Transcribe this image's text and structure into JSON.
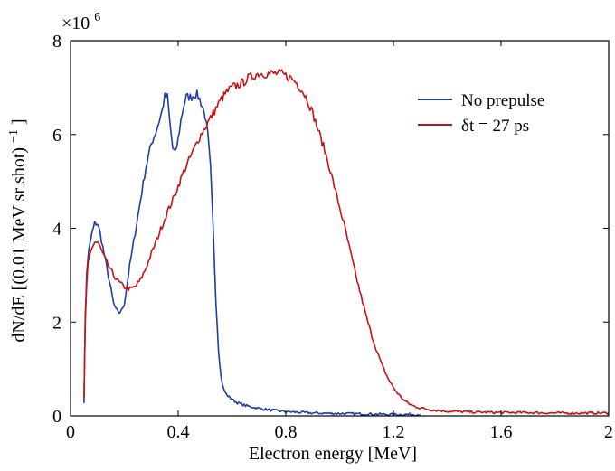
{
  "chart_data": {
    "type": "line",
    "title": "",
    "xlabel": "Electron energy [MeV]",
    "ylabel": "dN/dE [(0.01 MeV sr shot)",
    "ylabel_sup": "−1",
    "ylabel_close": "]",
    "y_exponent_label": "×10",
    "y_exponent_power": "6",
    "xlim": [
      0,
      2
    ],
    "ylim": [
      0,
      8
    ],
    "xticks": [
      0,
      0.4,
      0.8,
      1.2,
      1.6,
      2
    ],
    "xtick_labels": [
      "0",
      "0.4",
      "0.8",
      "1.2",
      "1.6",
      "2"
    ],
    "yticks": [
      0,
      2,
      4,
      6,
      8
    ],
    "ytick_labels": [
      "0",
      "2",
      "4",
      "6",
      "8"
    ],
    "grid": false,
    "legend_position": "top-right",
    "series": [
      {
        "name": "No prepulse",
        "color": "#1f3fa6",
        "x": [
          0.05,
          0.055,
          0.06,
          0.065,
          0.07,
          0.08,
          0.09,
          0.1,
          0.11,
          0.12,
          0.13,
          0.14,
          0.15,
          0.16,
          0.17,
          0.18,
          0.19,
          0.2,
          0.21,
          0.22,
          0.24,
          0.26,
          0.28,
          0.3,
          0.32,
          0.34,
          0.35,
          0.36,
          0.37,
          0.38,
          0.39,
          0.4,
          0.41,
          0.42,
          0.43,
          0.44,
          0.45,
          0.46,
          0.47,
          0.48,
          0.49,
          0.5,
          0.51,
          0.52,
          0.53,
          0.54,
          0.55,
          0.56,
          0.57,
          0.58,
          0.6,
          0.62,
          0.65,
          0.7,
          0.75,
          0.8,
          0.9,
          1.0,
          1.1,
          1.2,
          1.3
        ],
        "y": [
          0.3,
          2.2,
          3.0,
          3.4,
          3.6,
          3.9,
          4.1,
          4.1,
          3.9,
          3.6,
          3.3,
          3.0,
          2.7,
          2.4,
          2.25,
          2.2,
          2.25,
          2.4,
          2.8,
          3.2,
          3.9,
          4.6,
          5.3,
          5.8,
          6.1,
          6.5,
          6.8,
          6.8,
          6.2,
          5.7,
          5.6,
          5.9,
          6.3,
          6.6,
          6.8,
          6.8,
          6.8,
          6.85,
          6.85,
          6.75,
          6.6,
          6.4,
          6.0,
          5.3,
          4.0,
          2.5,
          1.4,
          0.8,
          0.55,
          0.45,
          0.35,
          0.28,
          0.22,
          0.16,
          0.12,
          0.09,
          0.06,
          0.05,
          0.04,
          0.03,
          0.03
        ]
      },
      {
        "name": "δt = 27 ps",
        "color": "#cc1111",
        "x": [
          0.05,
          0.055,
          0.06,
          0.065,
          0.07,
          0.08,
          0.09,
          0.1,
          0.11,
          0.12,
          0.14,
          0.16,
          0.18,
          0.2,
          0.22,
          0.24,
          0.26,
          0.28,
          0.3,
          0.32,
          0.34,
          0.36,
          0.38,
          0.4,
          0.42,
          0.44,
          0.46,
          0.48,
          0.5,
          0.52,
          0.54,
          0.56,
          0.58,
          0.6,
          0.62,
          0.64,
          0.66,
          0.68,
          0.7,
          0.72,
          0.74,
          0.76,
          0.78,
          0.8,
          0.82,
          0.84,
          0.86,
          0.88,
          0.9,
          0.92,
          0.94,
          0.96,
          0.98,
          1.0,
          1.02,
          1.04,
          1.06,
          1.08,
          1.1,
          1.12,
          1.14,
          1.16,
          1.18,
          1.2,
          1.22,
          1.24,
          1.26,
          1.28,
          1.3,
          1.32,
          1.34,
          1.36,
          1.38,
          1.4,
          1.45,
          1.5,
          1.6,
          1.7,
          1.8,
          1.9,
          2.0
        ],
        "y": [
          0.4,
          2.0,
          2.8,
          3.2,
          3.4,
          3.6,
          3.7,
          3.7,
          3.6,
          3.45,
          3.2,
          3.0,
          2.85,
          2.75,
          2.7,
          2.75,
          2.9,
          3.15,
          3.45,
          3.75,
          4.05,
          4.35,
          4.6,
          4.9,
          5.2,
          5.45,
          5.7,
          5.95,
          6.15,
          6.35,
          6.55,
          6.75,
          6.9,
          7.0,
          7.05,
          7.1,
          7.2,
          7.25,
          7.3,
          7.3,
          7.3,
          7.3,
          7.3,
          7.25,
          7.2,
          7.1,
          6.95,
          6.75,
          6.45,
          6.1,
          5.75,
          5.35,
          4.9,
          4.45,
          4.0,
          3.5,
          3.0,
          2.55,
          2.1,
          1.7,
          1.35,
          1.05,
          0.8,
          0.6,
          0.45,
          0.33,
          0.25,
          0.2,
          0.17,
          0.15,
          0.13,
          0.12,
          0.11,
          0.1,
          0.09,
          0.08,
          0.07,
          0.07,
          0.06,
          0.06,
          0.06
        ]
      }
    ]
  }
}
